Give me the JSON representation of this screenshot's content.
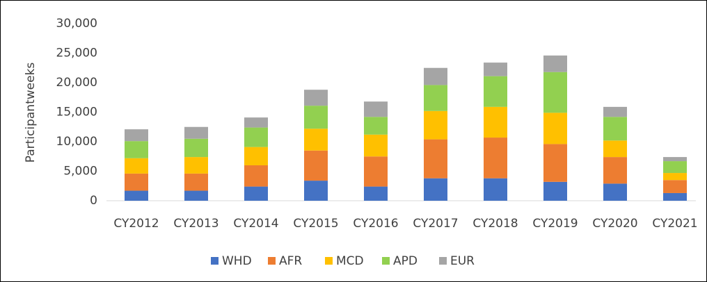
{
  "chart_data": {
    "type": "stacked_bar",
    "y_label": "Participantweeks",
    "categories": [
      "CY2012",
      "CY2013",
      "CY2014",
      "CY2015",
      "CY2016",
      "CY2017",
      "CY2018",
      "CY2019",
      "CY2020",
      "CY2021"
    ],
    "series": [
      {
        "name": "WHD",
        "color": "#4472c4",
        "values": [
          1700,
          1700,
          2400,
          3400,
          2400,
          3800,
          3800,
          3200,
          2900,
          1300
        ]
      },
      {
        "name": "AFR",
        "color": "#ed7d31",
        "values": [
          2900,
          2900,
          3600,
          5100,
          5100,
          6600,
          6900,
          6400,
          4500,
          2200
        ]
      },
      {
        "name": "MCD",
        "color": "#ffc000",
        "values": [
          2600,
          2800,
          3100,
          3700,
          3700,
          4800,
          5200,
          5300,
          2800,
          1200
        ]
      },
      {
        "name": "APD",
        "color": "#92d050",
        "values": [
          2900,
          3100,
          3300,
          3900,
          3000,
          4400,
          5200,
          6900,
          4000,
          2000
        ]
      },
      {
        "name": "EUR",
        "color": "#a5a5a5",
        "values": [
          2000,
          2000,
          1700,
          2700,
          2600,
          2900,
          2300,
          2800,
          1700,
          700
        ]
      }
    ],
    "ylim": [
      0,
      30000
    ],
    "yticks": [
      0,
      {
        "value": 5000,
        "label": "5,000"
      },
      {
        "value": 10000,
        "label": "10,000"
      },
      {
        "value": 15000,
        "label": "15,000"
      },
      {
        "value": 20000,
        "label": "20,000"
      },
      {
        "value": 25000,
        "label": "25,000"
      },
      {
        "value": 30000,
        "label": "30,000"
      }
    ],
    "legend": "bottom"
  }
}
